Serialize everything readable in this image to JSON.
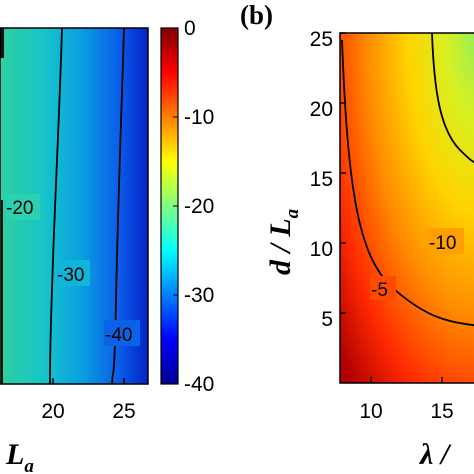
{
  "chart_data": [
    {
      "type": "heatmap",
      "panel_label": "",
      "xlabel": "L_a",
      "ylabel": "",
      "x_ticks": [
        "20",
        "25"
      ],
      "colorbar": {
        "ticks": [
          "0",
          "-10",
          "-20",
          "-30",
          "-40"
        ],
        "range": [
          -40,
          0
        ],
        "colormap": "jet"
      },
      "contours": [
        {
          "value": -20,
          "label": "-20"
        },
        {
          "value": -30,
          "label": "-30"
        },
        {
          "value": -40,
          "label": "-40"
        }
      ]
    },
    {
      "type": "heatmap",
      "panel_label": "(b)",
      "xlabel": "λ /",
      "ylabel": "d / L_a",
      "x_ticks": [
        "10",
        "15"
      ],
      "y_ticks": [
        "5",
        "10",
        "15",
        "20",
        "25"
      ],
      "contours": [
        {
          "value": -5,
          "label": "-5"
        },
        {
          "value": -10,
          "label": "-10"
        }
      ]
    }
  ]
}
